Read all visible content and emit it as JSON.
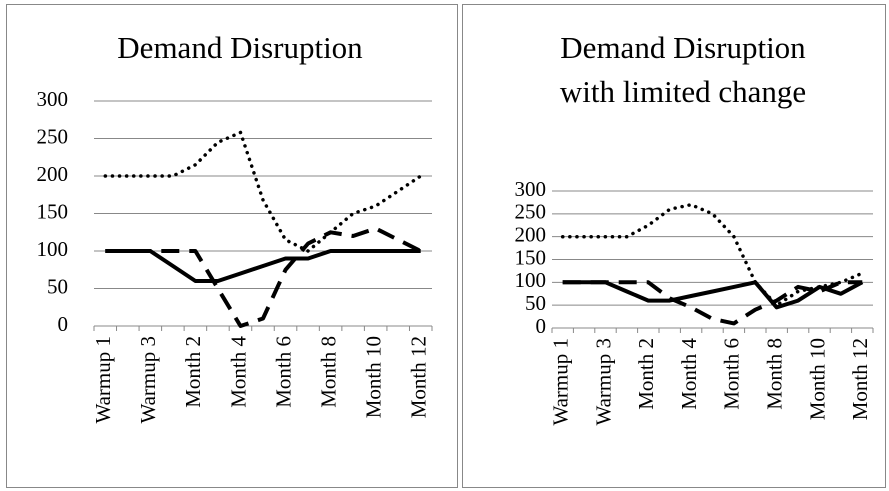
{
  "chart_data": [
    {
      "type": "line",
      "title": "Demand Disruption",
      "categories": [
        "Warmup 1",
        null,
        "Warmup 3",
        null,
        "Month 2",
        null,
        "Month 4",
        null,
        "Month 6",
        null,
        "Month 8",
        null,
        "Month 10",
        null,
        "Month 12"
      ],
      "series": [
        {
          "color": "#000000",
          "dash": "solid",
          "values": [
            100,
            100,
            100,
            80,
            60,
            60,
            70,
            80,
            90,
            90,
            100,
            100,
            100,
            100,
            100
          ]
        },
        {
          "color": "#000000",
          "dash": "dotted",
          "values": [
            200,
            200,
            200,
            200,
            215,
            245,
            258,
            168,
            115,
            100,
            125,
            150,
            160,
            180,
            200
          ]
        },
        {
          "color": "#000000",
          "dash": "dashed",
          "values": [
            100,
            100,
            100,
            100,
            100,
            50,
            0,
            10,
            75,
            110,
            125,
            120,
            130,
            115,
            100
          ]
        }
      ],
      "ylim": [
        0,
        300
      ],
      "yticks": [
        0,
        50,
        100,
        150,
        200,
        250,
        300
      ],
      "grid": true
    },
    {
      "type": "line",
      "title": "Demand Disruption with limited change",
      "categories": [
        "Warmup 1",
        null,
        "Warmup 3",
        null,
        "Month 2",
        null,
        "Month 4",
        null,
        "Month 6",
        null,
        "Month 8",
        null,
        "Month 10",
        null,
        "Month 12"
      ],
      "series": [
        {
          "color": "#000000",
          "dash": "solid",
          "values": [
            100,
            100,
            100,
            80,
            60,
            60,
            70,
            80,
            90,
            100,
            45,
            60,
            90,
            75,
            100
          ]
        },
        {
          "color": "#000000",
          "dash": "dotted",
          "values": [
            200,
            200,
            200,
            200,
            225,
            260,
            270,
            250,
            200,
            100,
            50,
            80,
            90,
            100,
            120
          ]
        },
        {
          "color": "#000000",
          "dash": "dashed",
          "values": [
            100,
            100,
            100,
            100,
            100,
            65,
            45,
            20,
            10,
            40,
            60,
            90,
            80,
            100,
            100
          ]
        }
      ],
      "ylim": [
        0,
        300
      ],
      "yticks": [
        0,
        50,
        100,
        150,
        200,
        250,
        300
      ],
      "grid": true
    }
  ]
}
